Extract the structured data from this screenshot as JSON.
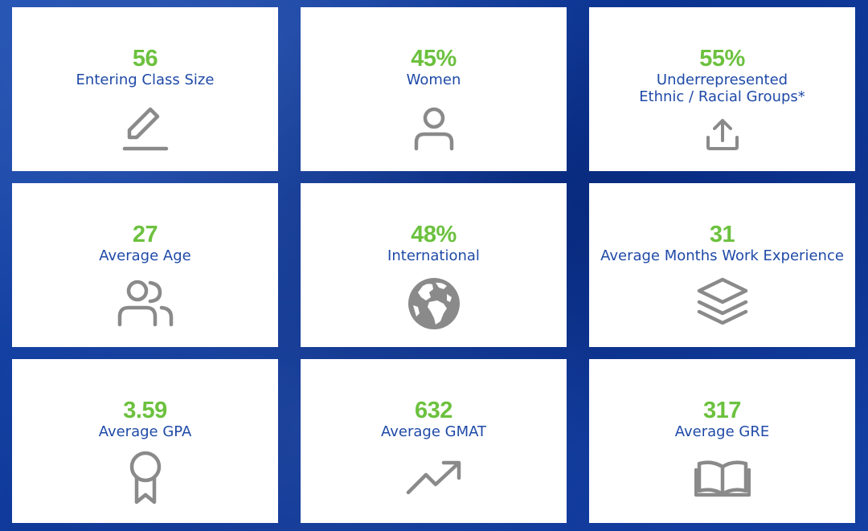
{
  "stats": [
    {
      "value": "56",
      "label": "Entering Class Size",
      "icon": "pencil-icon"
    },
    {
      "value": "45%",
      "label": "Women",
      "icon": "user-icon"
    },
    {
      "value": "55%",
      "label_line1": "Underrepresented",
      "label_line2": "Ethnic / Racial Groups*",
      "icon": "upload-icon"
    },
    {
      "value": "27",
      "label": "Average Age",
      "icon": "users-icon"
    },
    {
      "value": "48%",
      "label": "International",
      "icon": "globe-icon"
    },
    {
      "value": "31",
      "label": "Average Months Work Experience",
      "icon": "layers-icon"
    },
    {
      "value": "3.59",
      "label": "Average GPA",
      "icon": "award-ribbon-icon"
    },
    {
      "value": "632",
      "label": "Average GMAT",
      "icon": "trending-up-icon"
    },
    {
      "value": "317",
      "label": "Average GRE",
      "icon": "open-book-icon"
    }
  ],
  "colors": {
    "value": "#6cc13e",
    "label": "#1f4aa7",
    "icon": "#8a8a8a",
    "background": "#0f3ea1"
  }
}
